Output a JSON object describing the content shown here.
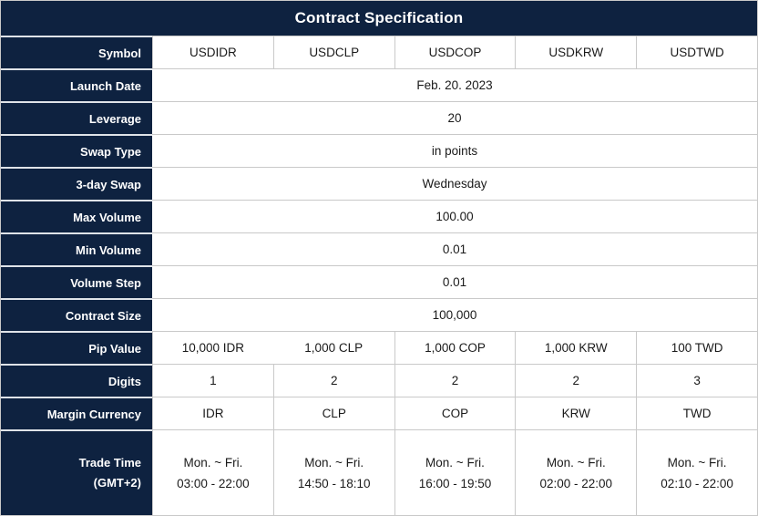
{
  "header": {
    "title": "Contract Specification"
  },
  "colors": {
    "header_bg": "#0e2240",
    "label_bg": "#0e2240",
    "border": "#c9c9c9",
    "label_text": "#ffffff",
    "data_text": "#1a1a1a"
  },
  "rows": [
    {
      "label": "Symbol",
      "type": "cells",
      "values": [
        "USDIDR",
        "USDCLP",
        "USDCOP",
        "USDKRW",
        "USDTWD"
      ]
    },
    {
      "label": "Launch Date",
      "type": "merged",
      "value": "Feb. 20. 2023"
    },
    {
      "label": "Leverage",
      "type": "merged",
      "value": "20"
    },
    {
      "label": "Swap Type",
      "type": "merged",
      "value": "in points"
    },
    {
      "label": "3-day Swap",
      "type": "merged",
      "value": "Wednesday"
    },
    {
      "label": "Max Volume",
      "type": "merged",
      "value": "100.00"
    },
    {
      "label": "Min Volume",
      "type": "merged",
      "value": "0.01"
    },
    {
      "label": "Volume Step",
      "type": "merged",
      "value": "0.01"
    },
    {
      "label": "Contract Size",
      "type": "merged",
      "value": "100,000"
    },
    {
      "label": "Pip Value",
      "type": "cells",
      "values": [
        "10,000 IDR",
        "1,000 CLP",
        "1,000 COP",
        "1,000 KRW",
        "100 TWD"
      ]
    },
    {
      "label": "Digits",
      "type": "cells",
      "values": [
        "1",
        "2",
        "2",
        "2",
        "3"
      ]
    },
    {
      "label": "Margin Currency",
      "type": "cells",
      "values": [
        "IDR",
        "CLP",
        "COP",
        "KRW",
        "TWD"
      ]
    },
    {
      "label": "Trade Time (GMT+2)",
      "label_lines": [
        "Trade Time",
        "(GMT+2)"
      ],
      "type": "cells-two-line",
      "values": [
        [
          "Mon. ~ Fri.",
          "03:00 - 22:00"
        ],
        [
          "Mon. ~ Fri.",
          "14:50 - 18:10"
        ],
        [
          "Mon. ~ Fri.",
          "16:00 - 19:50"
        ],
        [
          "Mon. ~ Fri.",
          "02:00 - 22:00"
        ],
        [
          "Mon. ~ Fri.",
          "02:10 - 22:00"
        ]
      ]
    }
  ]
}
